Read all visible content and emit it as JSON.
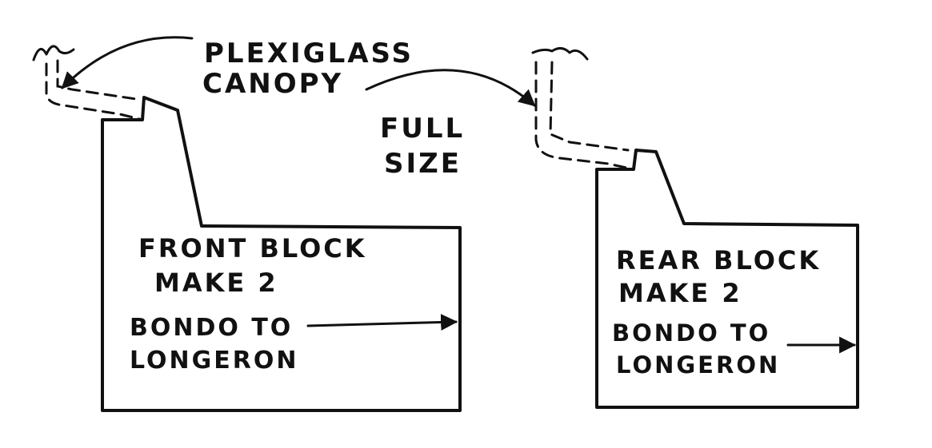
{
  "labels": {
    "plexiglass_line1": "PLEXIGLASS",
    "plexiglass_line2": "CANOPY",
    "full_size_line1": "FULL",
    "full_size_line2": "SIZE"
  },
  "front_block": {
    "title": "FRONT BLOCK",
    "quantity": "MAKE 2",
    "note_line1": "BONDO TO",
    "note_line2": "LONGERON"
  },
  "rear_block": {
    "title": "REAR BLOCK",
    "quantity": "MAKE 2",
    "note_line1": "BONDO TO",
    "note_line2": "LONGERON"
  },
  "colors": {
    "ink": "#111111",
    "paper": "#ffffff"
  }
}
